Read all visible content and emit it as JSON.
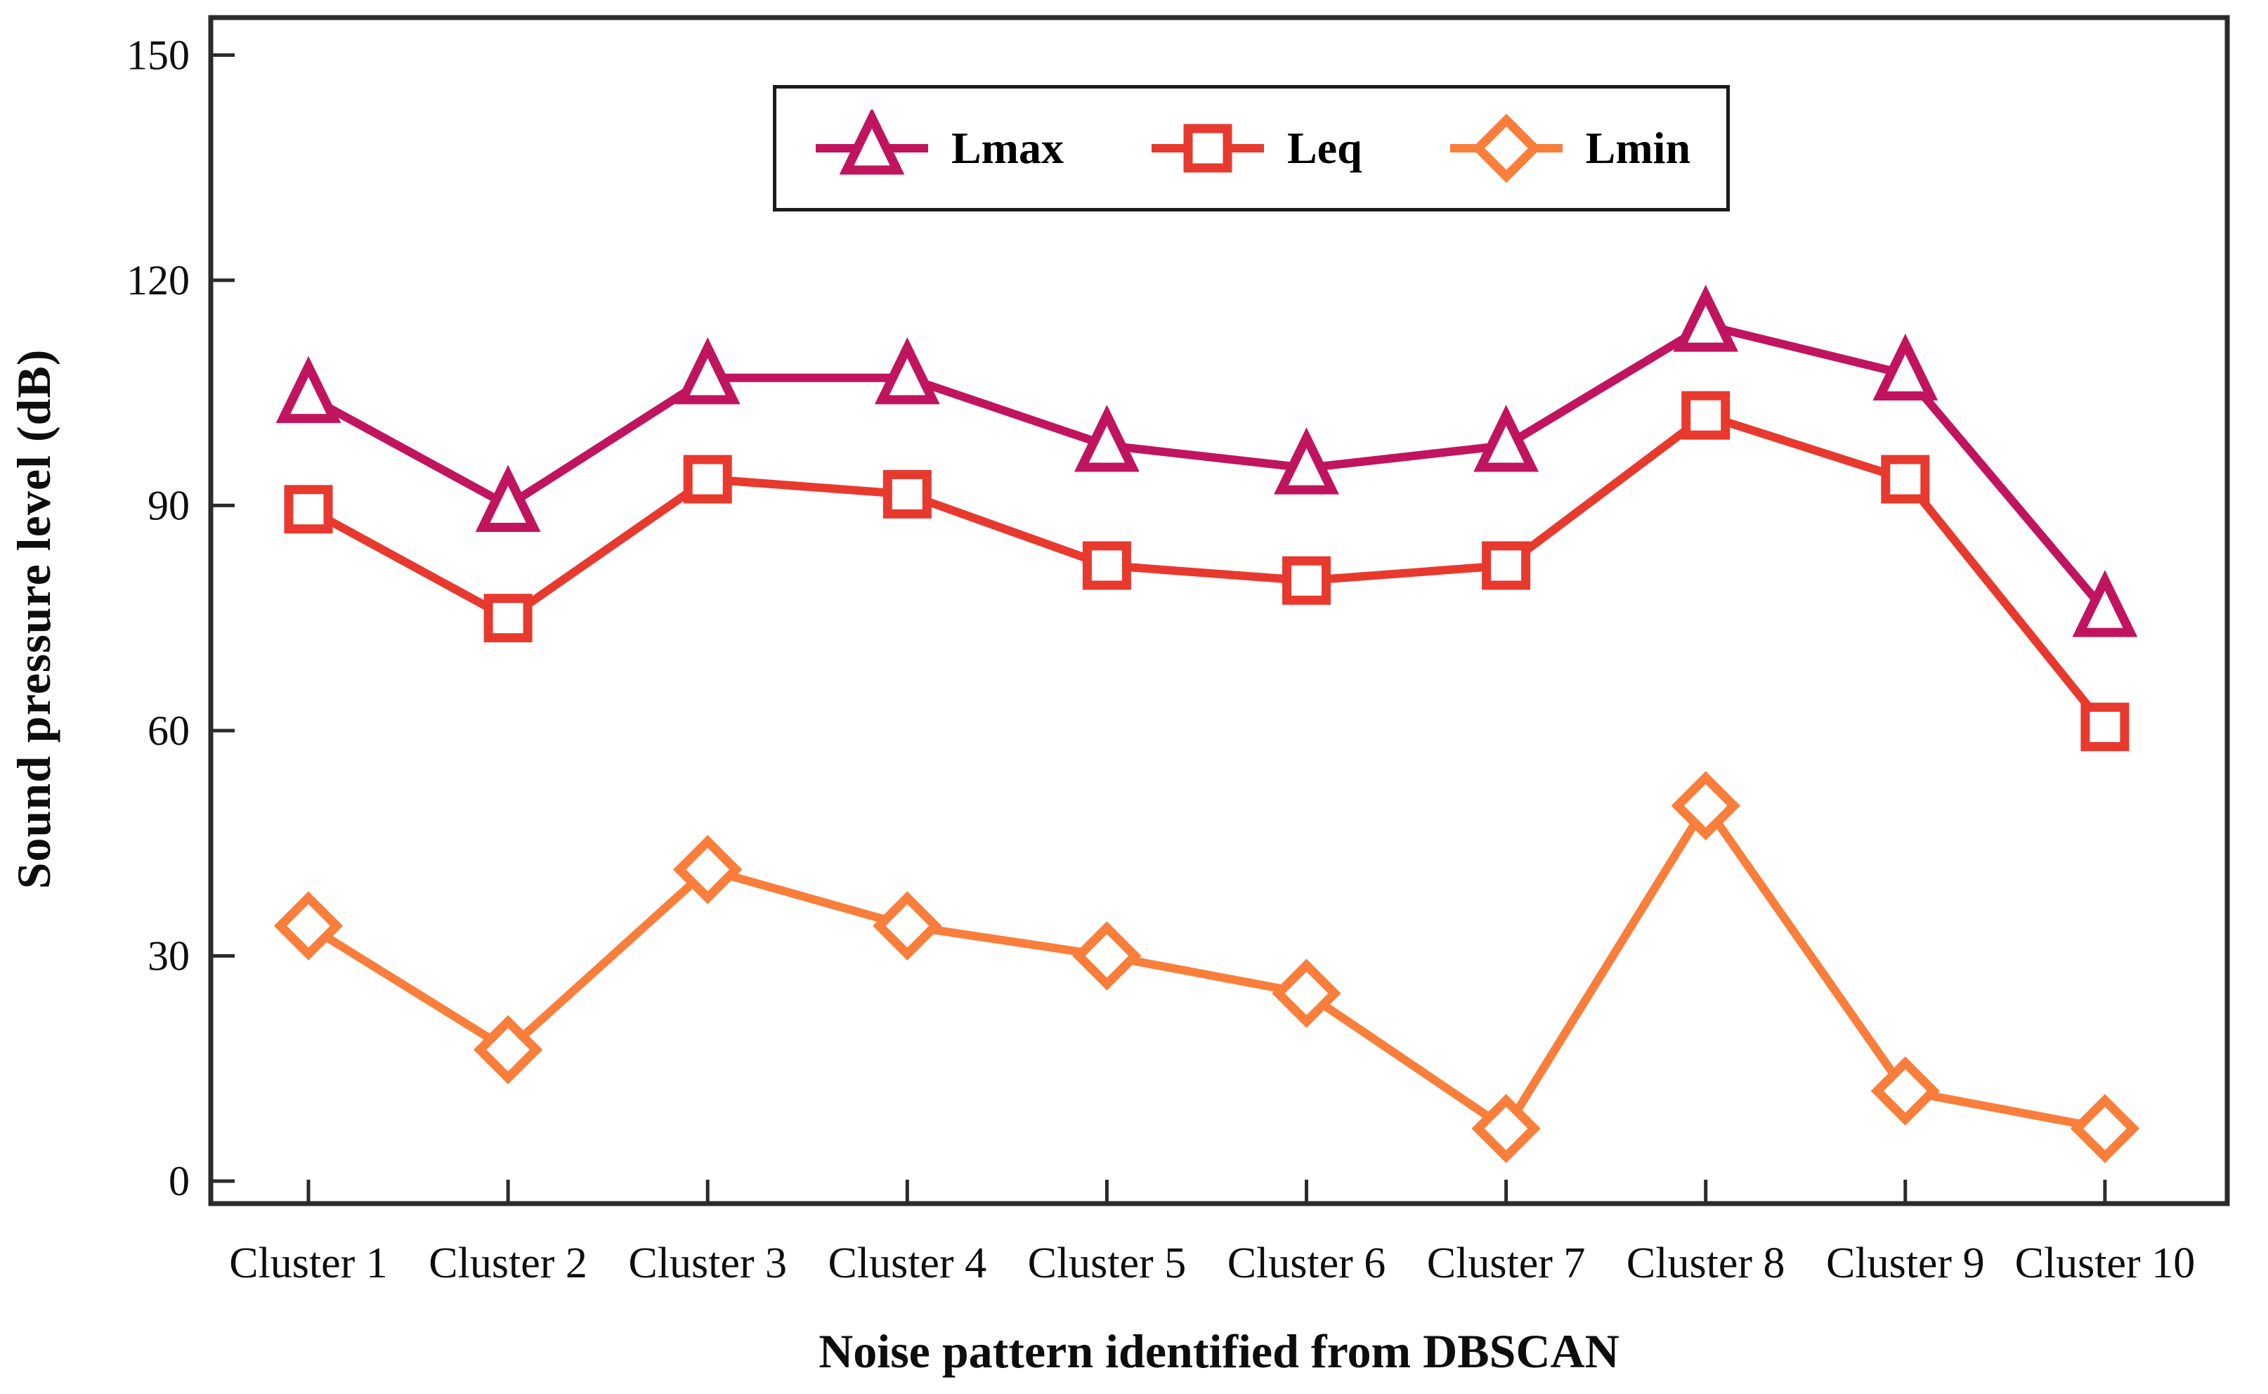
{
  "figure": {
    "y_axis_label": "Sound pressure level (dB)",
    "x_axis_label": "Noise pattern identified from DBSCAN"
  },
  "chart_data": {
    "type": "line",
    "title": "",
    "xlabel": "Noise pattern identified from DBSCAN",
    "ylabel": "Sound pressure level (dB)",
    "categories": [
      "Cluster 1",
      "Cluster 2",
      "Cluster 3",
      "Cluster 4",
      "Cluster 5",
      "Cluster 6",
      "Cluster 7",
      "Cluster 8",
      "Cluster 9",
      "Cluster 10"
    ],
    "series": [
      {
        "name": "Lmax",
        "marker": "triangle",
        "color": "#C1145F",
        "values": [
          104.5,
          90,
          107,
          107,
          98,
          95,
          98,
          114,
          107.5,
          76
        ]
      },
      {
        "name": "Leq",
        "marker": "square",
        "color": "#E8392E",
        "values": [
          89.5,
          75,
          93.5,
          91.5,
          82,
          80,
          82,
          102,
          93.5,
          60.5
        ]
      },
      {
        "name": "Lmin",
        "marker": "diamond",
        "color": "#F97E3B",
        "values": [
          34,
          17.5,
          41.5,
          34,
          30,
          25,
          7,
          50,
          12,
          7
        ]
      }
    ],
    "y_ticks": [
      0,
      30,
      60,
      90,
      120,
      150
    ],
    "ylim": [
      -3,
      155
    ],
    "grid": false,
    "legend_position": "top-center",
    "axis_color": "#2b2b2b",
    "tick_label_color": "#0d0d0d"
  }
}
